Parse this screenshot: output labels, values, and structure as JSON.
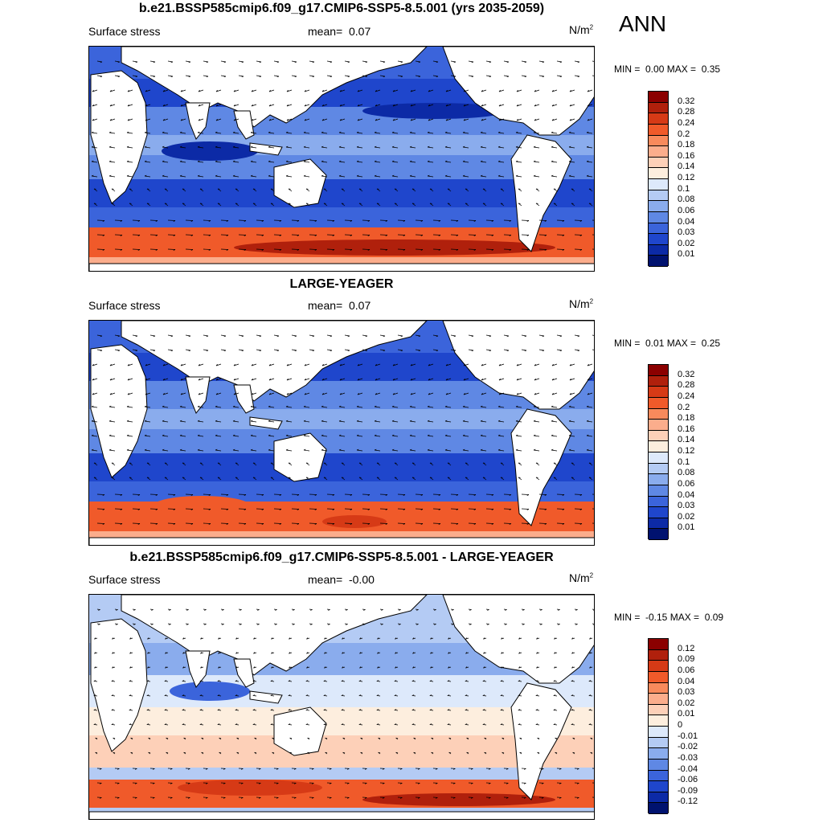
{
  "season": "ANN",
  "panels": [
    {
      "title": "b.e21.BSSP585cmip6.f09_g17.CMIP6-SSP5-8.5.001 (yrs 2035-2059)",
      "variable": "Surface stress",
      "mean_label": "mean=",
      "mean_value": "0.07",
      "units_base": "N/m",
      "units_exp": "2",
      "min_label": "MIN =",
      "min_value": "0.00",
      "max_label": "MAX =",
      "max_value": "0.35",
      "colorbar_labels": [
        "0.32",
        "0.28",
        "0.24",
        "0.2",
        "0.18",
        "0.16",
        "0.14",
        "0.12",
        "0.1",
        "0.08",
        "0.06",
        "0.04",
        "0.03",
        "0.02",
        "0.01"
      ],
      "colorbar_colors": [
        "#8b0000",
        "#b0200c",
        "#d63a16",
        "#f05a2a",
        "#f88a5c",
        "#fbad8c",
        "#fdd0b8",
        "#fdeede",
        "#dde9fb",
        "#b4cbf4",
        "#8aaced",
        "#5f88e4",
        "#3b64db",
        "#1f46cc",
        "#0c2aa6",
        "#00126f"
      ]
    },
    {
      "title": "LARGE-YEAGER",
      "variable": "Surface stress",
      "mean_label": "mean=",
      "mean_value": "0.07",
      "units_base": "N/m",
      "units_exp": "2",
      "min_label": "MIN =",
      "min_value": "0.01",
      "max_label": "MAX =",
      "max_value": "0.25",
      "colorbar_labels": [
        "0.32",
        "0.28",
        "0.24",
        "0.2",
        "0.18",
        "0.16",
        "0.14",
        "0.12",
        "0.1",
        "0.08",
        "0.06",
        "0.04",
        "0.03",
        "0.02",
        "0.01"
      ],
      "colorbar_colors": [
        "#8b0000",
        "#b0200c",
        "#d63a16",
        "#f05a2a",
        "#f88a5c",
        "#fbad8c",
        "#fdd0b8",
        "#fdeede",
        "#dde9fb",
        "#b4cbf4",
        "#8aaced",
        "#5f88e4",
        "#3b64db",
        "#1f46cc",
        "#0c2aa6",
        "#00126f"
      ]
    },
    {
      "title": "b.e21.BSSP585cmip6.f09_g17.CMIP6-SSP5-8.5.001 - LARGE-YEAGER",
      "variable": "Surface stress",
      "mean_label": "mean=",
      "mean_value": "-0.00",
      "units_base": "N/m",
      "units_exp": "2",
      "min_label": "MIN =",
      "min_value": "-0.15",
      "max_label": "MAX =",
      "max_value": "0.09",
      "colorbar_labels": [
        "0.12",
        "0.09",
        "0.06",
        "0.04",
        "0.03",
        "0.02",
        "0.01",
        "0",
        "-0.01",
        "-0.02",
        "-0.03",
        "-0.04",
        "-0.06",
        "-0.09",
        "-0.12"
      ],
      "colorbar_colors": [
        "#8b0000",
        "#b0200c",
        "#d63a16",
        "#f05a2a",
        "#f88a5c",
        "#fbad8c",
        "#fdd0b8",
        "#fdeede",
        "#dde9fb",
        "#b4cbf4",
        "#8aaced",
        "#5f88e4",
        "#3b64db",
        "#1f46cc",
        "#0c2aa6",
        "#00126f"
      ]
    }
  ]
}
